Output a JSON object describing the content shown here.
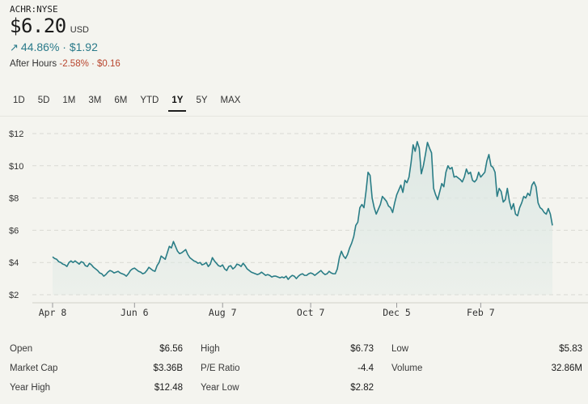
{
  "header": {
    "ticker": "ACHR:NYSE",
    "price": "$6.20",
    "currency": "USD",
    "change_arrow": "↗",
    "change": "44.86% · $1.92",
    "after_hours_label": "After Hours",
    "after_hours_change": "-2.58% · $0.16"
  },
  "ranges": [
    {
      "label": "1D",
      "active": false
    },
    {
      "label": "5D",
      "active": false
    },
    {
      "label": "1M",
      "active": false
    },
    {
      "label": "3M",
      "active": false
    },
    {
      "label": "6M",
      "active": false
    },
    {
      "label": "YTD",
      "active": false
    },
    {
      "label": "1Y",
      "active": true
    },
    {
      "label": "5Y",
      "active": false
    },
    {
      "label": "MAX",
      "active": false
    }
  ],
  "colors": {
    "line": "#2a7d86",
    "area": "#dde8e4",
    "grid": "#d9d9d3",
    "positive": "#2a7a8a",
    "negative": "#b8452e"
  },
  "chart_data": {
    "type": "area",
    "y_tick_labels": [
      "$2",
      "$4",
      "$6",
      "$8",
      "$10",
      "$12"
    ],
    "y_ticks": [
      2,
      4,
      6,
      8,
      10,
      12
    ],
    "ylim": [
      2,
      12.2
    ],
    "x_tick_labels": [
      "Apr 8",
      "Jun 6",
      "Aug 7",
      "Oct 7",
      "Dec 5",
      "Feb 7"
    ],
    "x_tick_index": [
      0,
      40,
      83,
      126,
      168,
      209
    ],
    "grid": true,
    "series": [
      {
        "values": [
          4.35,
          4.25,
          4.2,
          4.05,
          4.0,
          3.9,
          3.85,
          3.75,
          4.0,
          4.1,
          4.0,
          4.1,
          4.0,
          3.9,
          4.05,
          4.0,
          3.8,
          3.75,
          3.95,
          3.85,
          3.7,
          3.6,
          3.5,
          3.35,
          3.3,
          3.15,
          3.25,
          3.4,
          3.5,
          3.45,
          3.35,
          3.4,
          3.45,
          3.35,
          3.3,
          3.25,
          3.15,
          3.3,
          3.5,
          3.6,
          3.65,
          3.55,
          3.45,
          3.4,
          3.3,
          3.35,
          3.5,
          3.7,
          3.6,
          3.5,
          3.45,
          3.8,
          4.0,
          4.4,
          4.3,
          4.2,
          4.6,
          5.0,
          4.9,
          5.3,
          5.0,
          4.7,
          4.55,
          4.6,
          4.7,
          4.8,
          4.5,
          4.3,
          4.2,
          4.1,
          4.05,
          3.95,
          4.0,
          3.85,
          3.9,
          4.0,
          3.75,
          3.9,
          4.3,
          4.1,
          3.95,
          3.8,
          3.75,
          3.85,
          3.6,
          3.5,
          3.75,
          3.8,
          3.6,
          3.7,
          3.9,
          3.85,
          3.75,
          3.95,
          3.8,
          3.6,
          3.5,
          3.4,
          3.35,
          3.3,
          3.25,
          3.3,
          3.4,
          3.3,
          3.2,
          3.25,
          3.2,
          3.1,
          3.15,
          3.15,
          3.1,
          3.05,
          3.1,
          3.05,
          3.15,
          2.95,
          3.1,
          3.2,
          3.15,
          3.0,
          3.15,
          3.25,
          3.3,
          3.2,
          3.2,
          3.3,
          3.35,
          3.3,
          3.2,
          3.3,
          3.4,
          3.5,
          3.35,
          3.25,
          3.3,
          3.45,
          3.35,
          3.3,
          3.3,
          3.6,
          4.3,
          4.7,
          4.4,
          4.25,
          4.5,
          4.9,
          5.2,
          5.6,
          6.3,
          6.5,
          7.4,
          7.6,
          7.4,
          8.4,
          9.6,
          9.4,
          8.0,
          7.4,
          7.0,
          7.3,
          7.6,
          8.1,
          7.95,
          7.8,
          7.5,
          7.4,
          7.1,
          7.7,
          8.2,
          8.5,
          8.8,
          8.35,
          9.1,
          8.95,
          9.3,
          10.2,
          11.3,
          10.9,
          11.5,
          11.1,
          9.5,
          10.0,
          10.7,
          11.45,
          11.1,
          10.8,
          8.6,
          8.2,
          7.9,
          8.4,
          8.9,
          8.7,
          9.6,
          10.0,
          9.8,
          9.9,
          9.3,
          9.35,
          9.25,
          9.15,
          9.0,
          9.3,
          9.8,
          9.5,
          9.6,
          9.1,
          9.0,
          9.15,
          9.6,
          9.3,
          9.45,
          9.6,
          10.3,
          10.7,
          10.0,
          9.9,
          9.6,
          8.1,
          8.6,
          8.4,
          7.75,
          7.9,
          8.6,
          7.8,
          7.3,
          7.65,
          7.0,
          6.9,
          7.4,
          7.7,
          8.1,
          8.0,
          8.3,
          8.15,
          8.8,
          9.0,
          8.7,
          7.7,
          7.4,
          7.3,
          7.1,
          7.0,
          7.35,
          7.0,
          6.3
        ]
      }
    ]
  },
  "stats": [
    [
      {
        "label": "Open",
        "value": "$6.56"
      },
      {
        "label": "High",
        "value": "$6.73"
      },
      {
        "label": "Low",
        "value": "$5.83"
      }
    ],
    [
      {
        "label": "Market Cap",
        "value": "$3.36B"
      },
      {
        "label": "P/E Ratio",
        "value": "-4.4"
      },
      {
        "label": "Volume",
        "value": "32.86M"
      }
    ],
    [
      {
        "label": "Year High",
        "value": "$12.48"
      },
      {
        "label": "Year Low",
        "value": "$2.82"
      },
      {
        "label": "",
        "value": ""
      }
    ]
  ]
}
